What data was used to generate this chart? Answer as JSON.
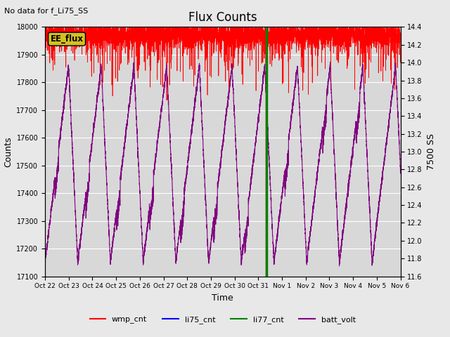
{
  "title": "Flux Counts",
  "top_left_text": "No data for f_Li75_SS",
  "xlabel": "Time",
  "ylabel_left": "Counts",
  "ylabel_right": "7500 SS",
  "ylim_left": [
    17100,
    18000
  ],
  "ylim_right": [
    11.6,
    14.4
  ],
  "background_color": "#e8e8e8",
  "plot_bg_color": "#d8d8d8",
  "x_ticks": [
    "Oct 22",
    "Oct 23",
    "Oct 24",
    "Oct 25",
    "Oct 26",
    "Oct 27",
    "Oct 28",
    "Oct 29",
    "Oct 30",
    "Oct 31",
    "Nov 1",
    "Nov 2",
    "Nov 3",
    "Nov 4",
    "Nov 5",
    "Nov 6"
  ],
  "legend_entries": [
    "wmp_cnt",
    "li75_cnt",
    "li77_cnt",
    "batt_volt"
  ],
  "legend_colors": [
    "red",
    "blue",
    "green",
    "purple"
  ],
  "annotation_text": "EE_flux",
  "annotation_color": "#d4c020",
  "title_fontsize": 12,
  "axis_fontsize": 9,
  "n_days": 15,
  "n_points": 5000,
  "wmp_base": 17975,
  "wmp_noise_std": 25,
  "batt_period": 1.38,
  "batt_min": 17150,
  "batt_max": 17860,
  "green_vline_day": 9.35,
  "red_vline_day": 9.32
}
